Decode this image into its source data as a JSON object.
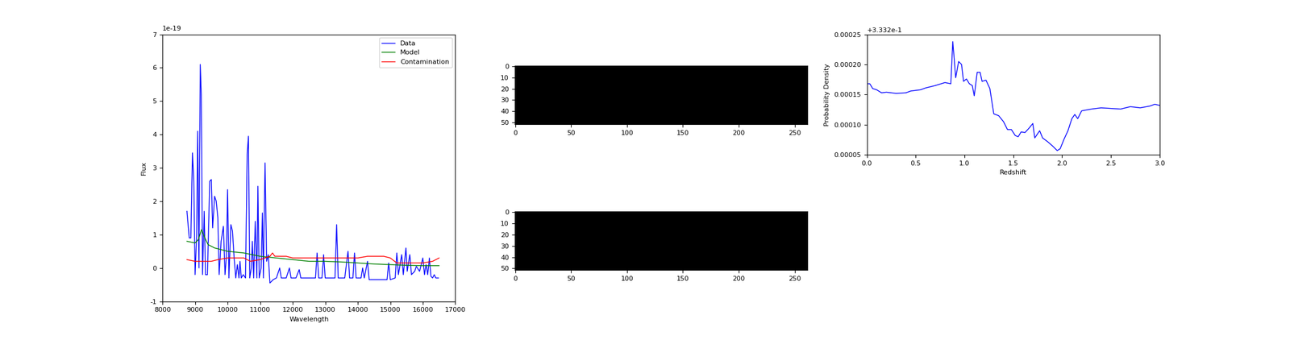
{
  "chart_data": [
    {
      "type": "line",
      "x_label": "Wavelength",
      "y_label": "Flux",
      "y_offset_text": "1e-19",
      "xlim": [
        8000,
        17000
      ],
      "xticks": [
        8000,
        9000,
        10000,
        11000,
        12000,
        13000,
        14000,
        15000,
        16000,
        17000
      ],
      "ylim": [
        -1,
        7
      ],
      "yticks": [
        -1,
        0,
        1,
        2,
        3,
        4,
        5,
        6,
        7
      ],
      "legend": "upper right",
      "series": [
        {
          "name": "Data",
          "color": "#0000ff",
          "x": [
            8750,
            8820,
            8870,
            8920,
            8960,
            9000,
            9050,
            9080,
            9120,
            9160,
            9190,
            9230,
            9280,
            9320,
            9380,
            9450,
            9500,
            9540,
            9600,
            9650,
            9700,
            9740,
            9800,
            9870,
            9920,
            9960,
            10000,
            10040,
            10100,
            10150,
            10200,
            10250,
            10300,
            10350,
            10380,
            10420,
            10480,
            10550,
            10600,
            10640,
            10680,
            10730,
            10760,
            10800,
            10850,
            10900,
            10930,
            10970,
            11030,
            11070,
            11100,
            11150,
            11200,
            11250,
            11300,
            11400,
            11500,
            11600,
            11650,
            11800,
            11900,
            11950,
            12100,
            12200,
            12250,
            12700,
            12750,
            12800,
            12900,
            12950,
            13000,
            13300,
            13350,
            13400,
            13600,
            13700,
            13750,
            13850,
            13900,
            13950,
            14100,
            14150,
            14200,
            14300,
            14350,
            14900,
            14950,
            15000,
            15150,
            15200,
            15250,
            15350,
            15400,
            15480,
            15520,
            15600,
            15650,
            15750,
            15800,
            15900,
            16000,
            16050,
            16100,
            16150,
            16200,
            16250,
            16300,
            16350,
            16400,
            16480
          ],
          "values": [
            1.7,
            0.9,
            0.9,
            3.45,
            2.6,
            -0.2,
            1.0,
            4.1,
            0.0,
            6.1,
            5.2,
            -0.2,
            1.7,
            -0.2,
            -0.2,
            2.6,
            2.65,
            1.2,
            2.15,
            2.0,
            1.5,
            -0.2,
            0.8,
            1.25,
            -0.2,
            0.3,
            2.35,
            -0.3,
            1.3,
            1.1,
            0.3,
            -0.3,
            0.1,
            -0.3,
            0.2,
            -0.3,
            -0.2,
            -0.3,
            3.4,
            3.95,
            -0.3,
            0.0,
            0.8,
            -0.3,
            1.4,
            -0.3,
            2.45,
            -0.3,
            0.0,
            1.65,
            -0.3,
            3.15,
            0.2,
            0.4,
            -0.45,
            -0.35,
            -0.3,
            0.0,
            -0.3,
            -0.3,
            0.0,
            -0.3,
            -0.3,
            -0.05,
            -0.3,
            -0.3,
            0.45,
            -0.3,
            -0.3,
            0.4,
            -0.3,
            -0.3,
            1.3,
            -0.3,
            -0.3,
            0.5,
            -0.3,
            -0.3,
            0.45,
            -0.3,
            -0.3,
            0.0,
            -0.3,
            0.2,
            -0.35,
            -0.35,
            0.15,
            -0.35,
            -0.3,
            0.45,
            -0.2,
            0.4,
            -0.2,
            0.6,
            -0.1,
            0.4,
            -0.2,
            -0.1,
            0.05,
            -0.1,
            0.3,
            -0.2,
            0.1,
            -0.2,
            0.3,
            -0.25,
            -0.3,
            -0.2,
            -0.3,
            -0.3
          ]
        },
        {
          "name": "Model",
          "color": "#008000",
          "x": [
            8750,
            9000,
            9100,
            9200,
            9300,
            9400,
            9600,
            10000,
            10500,
            11000,
            11500,
            12000,
            12500,
            13000,
            13500,
            14000,
            14500,
            15000,
            15500,
            16000,
            16500
          ],
          "values": [
            0.8,
            0.75,
            0.85,
            1.15,
            0.9,
            0.7,
            0.6,
            0.5,
            0.45,
            0.35,
            0.3,
            0.25,
            0.2,
            0.2,
            0.18,
            0.15,
            0.12,
            0.1,
            0.08,
            0.07,
            0.07
          ]
        },
        {
          "name": "Contamination",
          "color": "#ff0000",
          "x": [
            8750,
            9000,
            9500,
            9700,
            10000,
            10500,
            10700,
            11000,
            11300,
            11380,
            11450,
            11800,
            12000,
            12500,
            13000,
            13500,
            14000,
            14300,
            14800,
            15000,
            15200,
            15500,
            16000,
            16300,
            16500
          ],
          "values": [
            0.25,
            0.2,
            0.2,
            0.25,
            0.3,
            0.3,
            0.2,
            0.25,
            0.35,
            0.45,
            0.35,
            0.35,
            0.3,
            0.3,
            0.3,
            0.3,
            0.3,
            0.35,
            0.35,
            0.3,
            0.15,
            0.15,
            0.15,
            0.2,
            0.3
          ]
        }
      ]
    },
    {
      "type": "image",
      "shape": [
        52,
        262
      ],
      "fill": 0,
      "color": "#000000",
      "xlim": [
        -0.5,
        261.5
      ],
      "xticks": [
        0,
        50,
        100,
        150,
        200,
        250
      ],
      "ylim": [
        51.5,
        -0.5
      ],
      "yticks": [
        0,
        10,
        20,
        30,
        40,
        50
      ]
    },
    {
      "type": "image",
      "shape": [
        52,
        262
      ],
      "fill": 0,
      "color": "#000000",
      "xlim": [
        -0.5,
        261.5
      ],
      "xticks": [
        0,
        50,
        100,
        150,
        200,
        250
      ],
      "ylim": [
        51.5,
        -0.5
      ],
      "yticks": [
        0,
        10,
        20,
        30,
        40,
        50
      ]
    },
    {
      "type": "line",
      "x_label": "Redshift",
      "y_label": "Probability Density",
      "y_offset_text": "+3.332e-1",
      "xlim": [
        0.0,
        3.0
      ],
      "xticks": [
        0.0,
        0.5,
        1.0,
        1.5,
        2.0,
        2.5,
        3.0
      ],
      "ylim": [
        5e-05,
        0.00025
      ],
      "yticks": [
        {
          "value": 5e-05,
          "label": "0.00005"
        },
        {
          "value": 0.0001,
          "label": "0.00010"
        },
        {
          "value": 0.00015,
          "label": "0.00015"
        },
        {
          "value": 0.0002,
          "label": "0.00020"
        },
        {
          "value": 0.00025,
          "label": "0.00025"
        }
      ],
      "series": [
        {
          "color": "#0000ff",
          "x": [
            0.0,
            0.03,
            0.06,
            0.1,
            0.15,
            0.2,
            0.3,
            0.4,
            0.45,
            0.55,
            0.6,
            0.7,
            0.8,
            0.86,
            0.88,
            0.91,
            0.94,
            0.97,
            0.99,
            1.02,
            1.05,
            1.08,
            1.1,
            1.13,
            1.16,
            1.18,
            1.22,
            1.26,
            1.3,
            1.35,
            1.4,
            1.44,
            1.48,
            1.52,
            1.55,
            1.58,
            1.62,
            1.66,
            1.7,
            1.72,
            1.77,
            1.8,
            1.85,
            1.9,
            1.95,
            1.98,
            2.02,
            2.06,
            2.1,
            2.13,
            2.16,
            2.2,
            2.3,
            2.4,
            2.5,
            2.6,
            2.7,
            2.8,
            2.9,
            2.95,
            3.0
          ],
          "values": [
            0.000168,
            0.000168,
            0.00016,
            0.000158,
            0.000153,
            0.000154,
            0.000152,
            0.000153,
            0.000156,
            0.000158,
            0.000161,
            0.000165,
            0.00017,
            0.000168,
            0.000238,
            0.000178,
            0.000205,
            0.0002,
            0.000172,
            0.000176,
            0.000168,
            0.000165,
            0.000148,
            0.000187,
            0.000187,
            0.000172,
            0.000174,
            0.00016,
            0.000118,
            0.000115,
            0.000105,
            9.2e-05,
            9.2e-05,
            8.2e-05,
            8e-05,
            8.8e-05,
            8.7e-05,
            9.4e-05,
            0.000102,
            7.8e-05,
            9e-05,
            7.8e-05,
            7.2e-05,
            6.5e-05,
            5.7e-05,
            6e-05,
            7.6e-05,
            9e-05,
            0.00011,
            0.000117,
            0.00011,
            0.000123,
            0.000126,
            0.000128,
            0.000127,
            0.000126,
            0.00013,
            0.000128,
            0.000131,
            0.000134,
            0.000132
          ]
        }
      ]
    }
  ]
}
